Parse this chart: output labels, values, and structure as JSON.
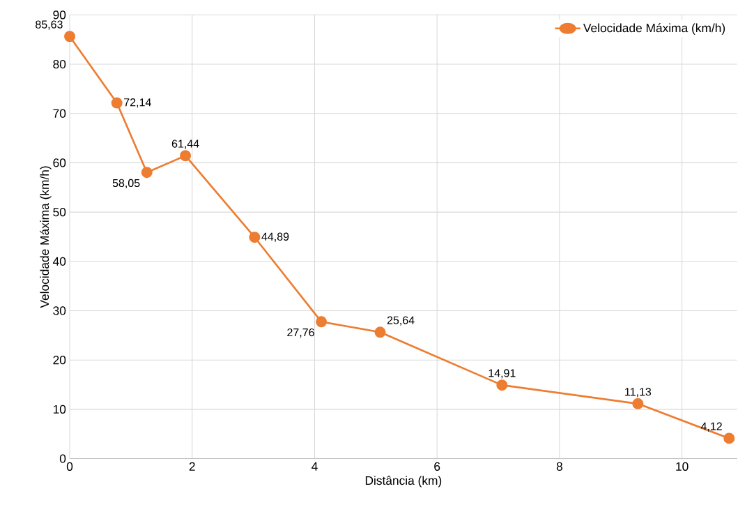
{
  "chart_data": {
    "type": "line",
    "xlabel": "Distância (km)",
    "ylabel": "Velocidade Máxima (km/h)",
    "x": [
      0,
      0.77,
      1.26,
      1.89,
      3.02,
      4.11,
      5.07,
      7.06,
      9.28,
      10.77
    ],
    "series": [
      {
        "name": "Velocidade Máxima (km/h)",
        "color": "#ed7d31",
        "values": [
          85.63,
          72.14,
          58.05,
          61.44,
          44.89,
          27.76,
          25.64,
          14.91,
          11.13,
          4.12
        ],
        "value_labels": [
          "85,63",
          "72,14",
          "58,05",
          "61,44",
          "44,89",
          "27,76",
          "25,64",
          "14,91",
          "11,13",
          "4,12"
        ]
      }
    ],
    "xlim": [
      0,
      10.9
    ],
    "ylim": [
      0,
      90
    ],
    "xticks": [
      0,
      2,
      4,
      6,
      8,
      10
    ],
    "yticks": [
      0,
      10,
      20,
      30,
      40,
      50,
      60,
      70,
      80,
      90
    ],
    "grid": true,
    "legend": "top right",
    "marker": "circle",
    "line_style": "solid"
  }
}
